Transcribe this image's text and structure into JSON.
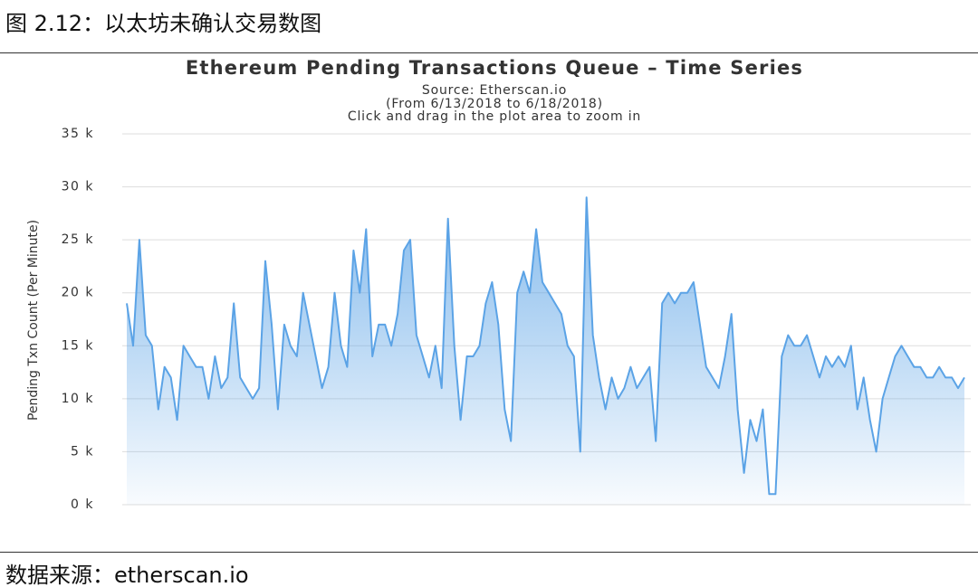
{
  "caption": "图 2.12：以太坊未确认交易数图",
  "source": "数据来源：etherscan.io",
  "chart_data": {
    "type": "area",
    "title": "Ethereum Pending Transactions Queue – Time Series",
    "subtitle": [
      "Source: Etherscan.io",
      "(From 6/13/2018 to 6/18/2018)",
      "Click and drag in the plot area to zoom in"
    ],
    "y_label": "Pending Txn Count (Per Minute)",
    "color": "#5ba3e6",
    "grid": true,
    "ylim": [
      0,
      35
    ],
    "yticks": [
      {
        "value": 0,
        "label": "0 k"
      },
      {
        "value": 5,
        "label": "5 k"
      },
      {
        "value": 10,
        "label": "10 k"
      },
      {
        "value": 15,
        "label": "15 k"
      },
      {
        "value": 20,
        "label": "20 k"
      },
      {
        "value": 25,
        "label": "25 k"
      },
      {
        "value": 30,
        "label": "30 k"
      },
      {
        "value": 35,
        "label": "35 k"
      }
    ],
    "values": [
      19,
      15,
      25,
      16,
      15,
      9,
      13,
      12,
      8,
      15,
      14,
      13,
      13,
      10,
      14,
      11,
      12,
      19,
      12,
      11,
      10,
      11,
      23,
      17,
      9,
      17,
      15,
      14,
      20,
      17,
      14,
      11,
      13,
      20,
      15,
      13,
      24,
      20,
      26,
      14,
      17,
      17,
      15,
      18,
      24,
      25,
      16,
      14,
      12,
      15,
      11,
      27,
      15,
      8,
      14,
      14,
      15,
      19,
      21,
      17,
      9,
      6,
      20,
      22,
      20,
      26,
      21,
      20,
      19,
      18,
      15,
      14,
      5,
      29,
      16,
      12,
      9,
      12,
      10,
      11,
      13,
      11,
      12,
      13,
      6,
      19,
      20,
      19,
      20,
      20,
      21,
      17,
      13,
      12,
      11,
      14,
      18,
      9,
      3,
      8,
      6,
      9,
      1,
      1,
      14,
      16,
      15,
      15,
      16,
      14,
      12,
      14,
      13,
      14,
      13,
      15,
      9,
      12,
      8,
      5,
      10,
      12,
      14,
      15,
      14,
      13,
      13,
      12,
      12,
      13,
      12,
      12,
      11,
      12
    ]
  }
}
